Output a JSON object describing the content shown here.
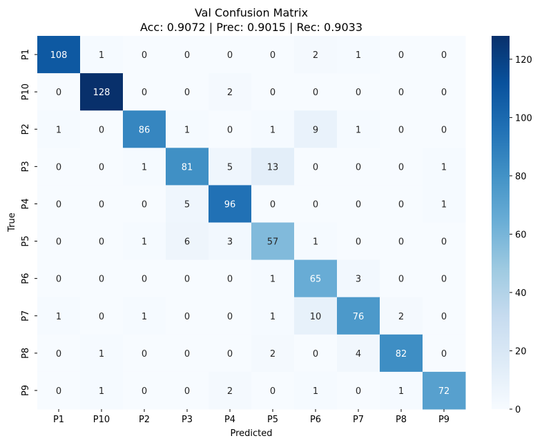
{
  "chart_data": {
    "type": "heatmap",
    "title": "Val Confusion Matrix",
    "subtitle": "Acc: 0.9072 | Prec: 0.9015 | Rec: 0.9033",
    "xlabel": "Predicted",
    "ylabel": "True",
    "x_categories": [
      "P1",
      "P10",
      "P2",
      "P3",
      "P4",
      "P5",
      "P6",
      "P7",
      "P8",
      "P9"
    ],
    "y_categories": [
      "P1",
      "P10",
      "P2",
      "P3",
      "P4",
      "P5",
      "P6",
      "P7",
      "P8",
      "P9"
    ],
    "values": [
      [
        108,
        1,
        0,
        0,
        0,
        0,
        2,
        1,
        0,
        0
      ],
      [
        0,
        128,
        0,
        0,
        2,
        0,
        0,
        0,
        0,
        0
      ],
      [
        1,
        0,
        86,
        1,
        0,
        1,
        9,
        1,
        0,
        0
      ],
      [
        0,
        0,
        1,
        81,
        5,
        13,
        0,
        0,
        0,
        1
      ],
      [
        0,
        0,
        0,
        5,
        96,
        0,
        0,
        0,
        0,
        1
      ],
      [
        0,
        0,
        1,
        6,
        3,
        57,
        1,
        0,
        0,
        0
      ],
      [
        0,
        0,
        0,
        0,
        0,
        1,
        65,
        3,
        0,
        0
      ],
      [
        1,
        0,
        1,
        0,
        0,
        1,
        10,
        76,
        2,
        0
      ],
      [
        0,
        1,
        0,
        0,
        0,
        2,
        0,
        4,
        82,
        0
      ],
      [
        0,
        1,
        0,
        0,
        2,
        0,
        1,
        0,
        1,
        72
      ]
    ],
    "colorbar": {
      "min": 0,
      "max": 128,
      "ticks": [
        0,
        20,
        40,
        60,
        80,
        100,
        120
      ]
    },
    "colormap": "Blues",
    "grid": false
  }
}
